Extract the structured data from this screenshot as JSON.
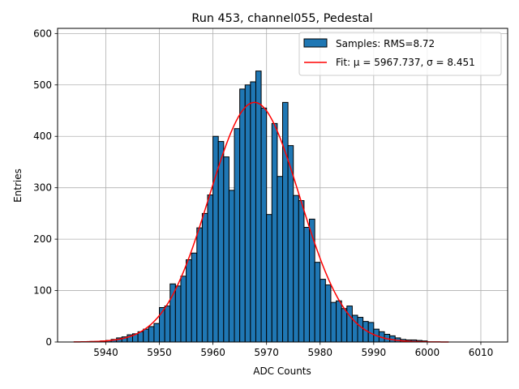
{
  "chart_data": {
    "type": "bar",
    "title": "Run 453, channel055, Pedestal",
    "xlabel": "ADC Counts",
    "ylabel": "Entries",
    "xlim": [
      5931,
      6015
    ],
    "ylim": [
      0,
      610
    ],
    "xticks": [
      5940,
      5950,
      5960,
      5970,
      5980,
      5990,
      6000,
      6010
    ],
    "yticks": [
      0,
      100,
      200,
      300,
      400,
      500,
      600
    ],
    "grid": true,
    "legend_position": "top-right",
    "bin_width": 1,
    "bin_starts": [
      5937,
      5938,
      5939,
      5940,
      5941,
      5942,
      5943,
      5944,
      5945,
      5946,
      5947,
      5948,
      5949,
      5950,
      5951,
      5952,
      5953,
      5954,
      5955,
      5956,
      5957,
      5958,
      5959,
      5960,
      5961,
      5962,
      5963,
      5964,
      5965,
      5966,
      5967,
      5968,
      5969,
      5970,
      5971,
      5972,
      5973,
      5974,
      5975,
      5976,
      5977,
      5978,
      5979,
      5980,
      5981,
      5982,
      5983,
      5984,
      5985,
      5986,
      5987,
      5988,
      5989,
      5990,
      5991,
      5992,
      5993,
      5994,
      5995,
      5996,
      5997,
      5998,
      5999
    ],
    "counts": [
      1,
      1,
      2,
      3,
      5,
      8,
      10,
      14,
      16,
      20,
      25,
      30,
      36,
      67,
      70,
      113,
      109,
      128,
      160,
      173,
      222,
      250,
      286,
      400,
      390,
      360,
      295,
      415,
      492,
      500,
      506,
      527,
      455,
      248,
      425,
      322,
      466,
      382,
      285,
      275,
      223,
      239,
      155,
      122,
      111,
      77,
      80,
      65,
      70,
      52,
      48,
      40,
      38,
      25,
      20,
      15,
      12,
      8,
      5,
      4,
      4,
      3,
      2
    ],
    "fit": {
      "type": "gaussian",
      "mu": 5967.737,
      "sigma": 8.451,
      "peak": 466,
      "x_range": [
        5934,
        6004
      ],
      "color": "#ff0000"
    },
    "bar_color": "#1f77b4",
    "legend": [
      {
        "label": "Samples: RMS=8.72",
        "marker": "patch",
        "color": "#1f77b4"
      },
      {
        "label": "Fit: μ = 5967.737, σ = 8.451",
        "marker": "line",
        "color": "#ff0000"
      }
    ]
  }
}
